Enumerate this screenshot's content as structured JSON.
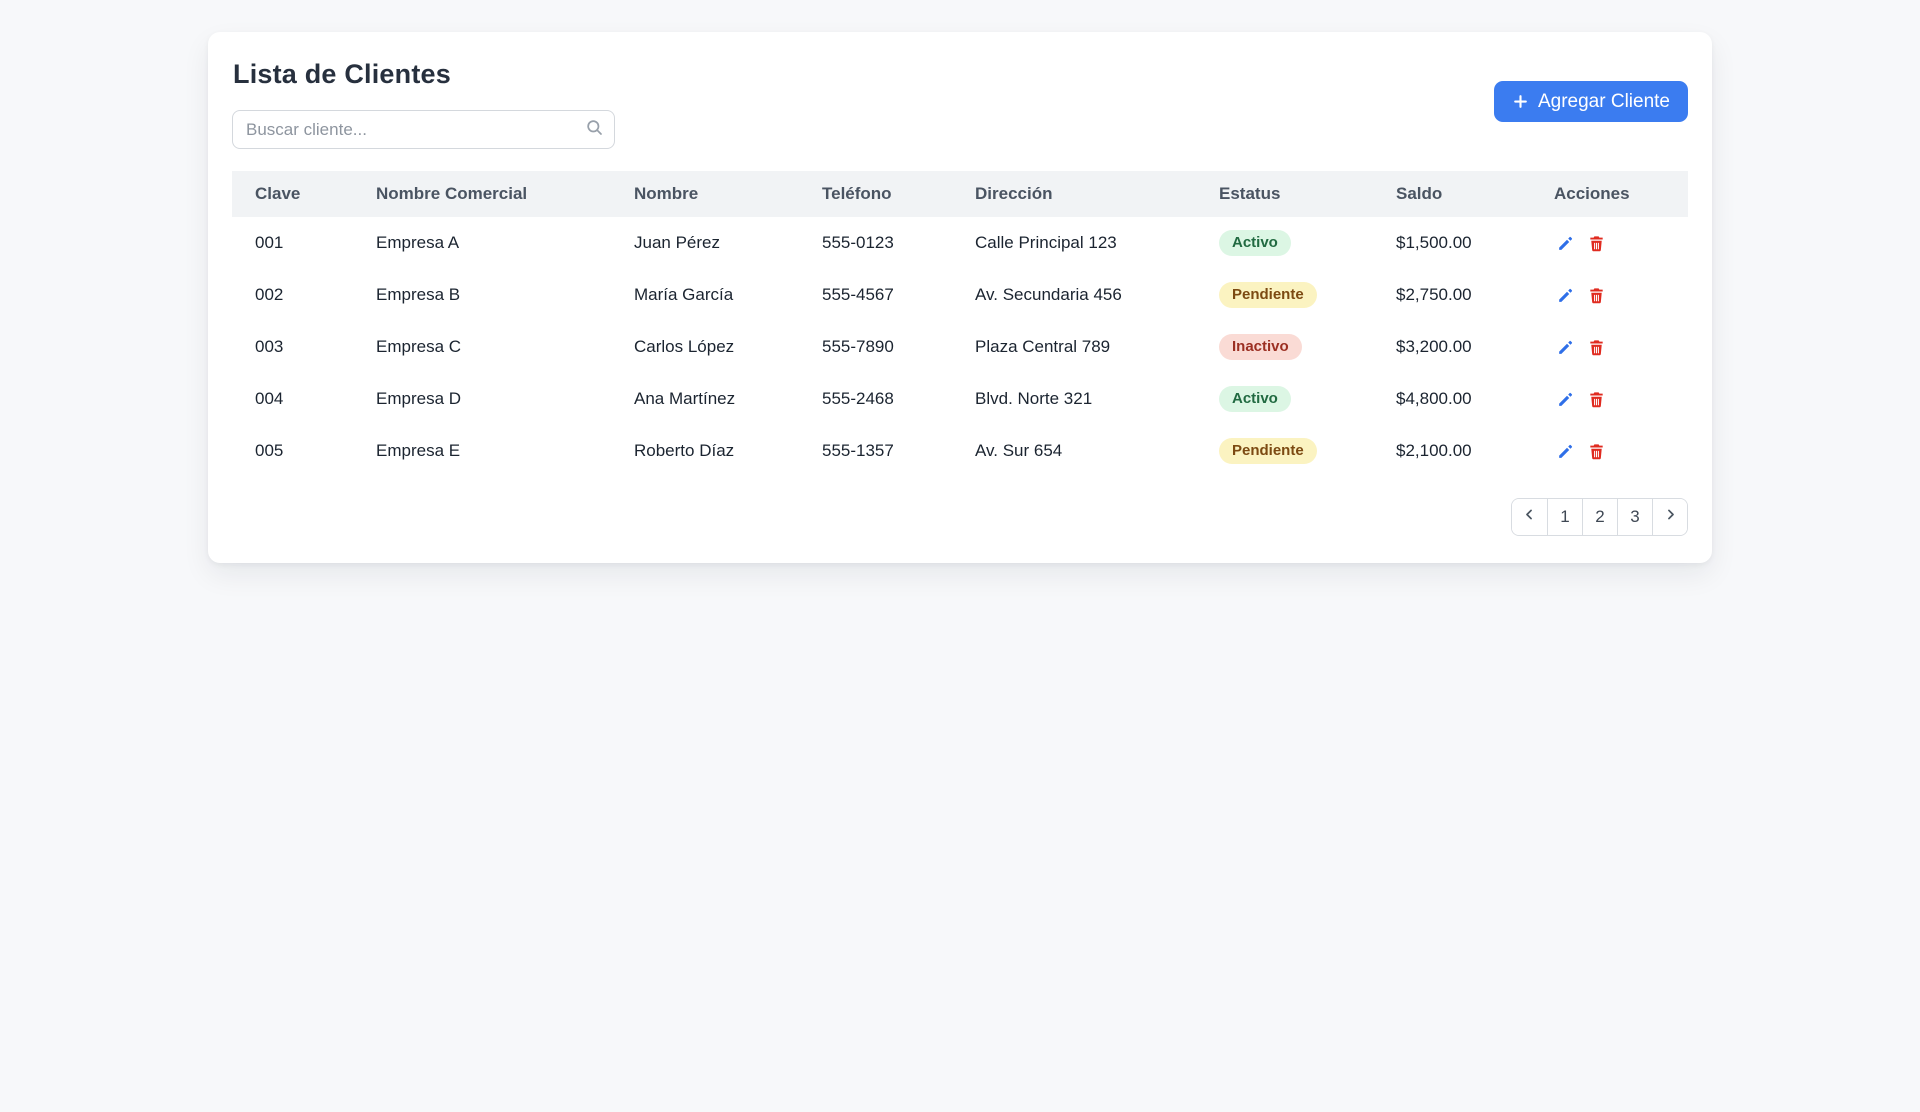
{
  "page": {
    "title": "Lista de Clientes"
  },
  "search": {
    "placeholder": "Buscar cliente..."
  },
  "add_button": {
    "label": "Agregar Cliente",
    "icon": "plus"
  },
  "table": {
    "columns": [
      "Clave",
      "Nombre Comercial",
      "Nombre",
      "Teléfono",
      "Dirección",
      "Estatus",
      "Saldo",
      "Acciones"
    ],
    "rows": [
      {
        "clave": "001",
        "nombre_comercial": "Empresa A",
        "nombre": "Juan Pérez",
        "telefono": "555-0123",
        "direccion": "Calle Principal 123",
        "estatus": "Activo",
        "saldo": "$1,500.00"
      },
      {
        "clave": "002",
        "nombre_comercial": "Empresa B",
        "nombre": "María García",
        "telefono": "555-4567",
        "direccion": "Av. Secundaria 456",
        "estatus": "Pendiente",
        "saldo": "$2,750.00"
      },
      {
        "clave": "003",
        "nombre_comercial": "Empresa C",
        "nombre": "Carlos López",
        "telefono": "555-7890",
        "direccion": "Plaza Central 789",
        "estatus": "Inactivo",
        "saldo": "$3,200.00"
      },
      {
        "clave": "004",
        "nombre_comercial": "Empresa D",
        "nombre": "Ana Martínez",
        "telefono": "555-2468",
        "direccion": "Blvd. Norte 321",
        "estatus": "Activo",
        "saldo": "$4,800.00"
      },
      {
        "clave": "005",
        "nombre_comercial": "Empresa E",
        "nombre": "Roberto Díaz",
        "telefono": "555-1357",
        "direccion": "Av. Sur 654",
        "estatus": "Pendiente",
        "saldo": "$2,100.00"
      }
    ],
    "status_styles": {
      "Activo": {
        "bg": "#dcf6e4",
        "text": "#216a41"
      },
      "Pendiente": {
        "bg": "#fbf3c1",
        "text": "#7c4a12"
      },
      "Inactivo": {
        "bg": "#fadbd5",
        "text": "#9c3023"
      }
    }
  },
  "actions": {
    "edit_icon": "edit-pencil",
    "delete_icon": "trash"
  },
  "pagination": {
    "pages": [
      "1",
      "2",
      "3"
    ],
    "prev_icon": "chevron-left",
    "next_icon": "chevron-right"
  },
  "colors": {
    "page_background": "#f7f8fa",
    "card_background": "#ffffff",
    "accent_blue": "#3b7cf0",
    "header_row_background": "#f1f3f5",
    "edit_icon_color": "#2f6fe8",
    "delete_icon_color": "#e02b20"
  }
}
